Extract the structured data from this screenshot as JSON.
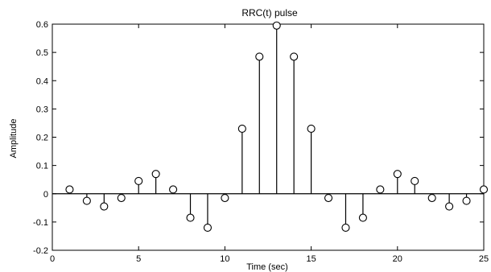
{
  "chart_data": {
    "type": "stem",
    "title": "RRC(t) pulse",
    "xlabel": "Time (sec)",
    "ylabel": "Amplitude",
    "xlim": [
      0,
      25
    ],
    "ylim": [
      -0.2,
      0.6
    ],
    "xticks": [
      0,
      5,
      10,
      15,
      20,
      25
    ],
    "yticks": [
      -0.2,
      -0.1,
      0,
      0.1,
      0.2,
      0.3,
      0.4,
      0.5,
      0.6
    ],
    "xtick_labels": [
      "0",
      "5",
      "10",
      "15",
      "20",
      "25"
    ],
    "ytick_labels": [
      "-0.2",
      "-0.1",
      "0",
      "0.1",
      "0.2",
      "0.3",
      "0.4",
      "0.5",
      "0.6"
    ],
    "grid": false,
    "baseline": 0,
    "marker": "open-circle",
    "line_color": "#000000",
    "x": [
      1,
      2,
      3,
      4,
      5,
      6,
      7,
      8,
      9,
      10,
      11,
      12,
      13,
      14,
      15,
      16,
      17,
      18,
      19,
      20,
      21,
      22,
      23,
      24,
      25
    ],
    "values": [
      0.015,
      -0.025,
      -0.045,
      -0.015,
      0.045,
      0.07,
      0.015,
      -0.085,
      -0.12,
      -0.015,
      0.23,
      0.485,
      0.595,
      0.485,
      0.23,
      -0.015,
      -0.12,
      -0.085,
      0.015,
      0.07,
      0.045,
      -0.015,
      -0.045,
      -0.025,
      0.015
    ]
  }
}
